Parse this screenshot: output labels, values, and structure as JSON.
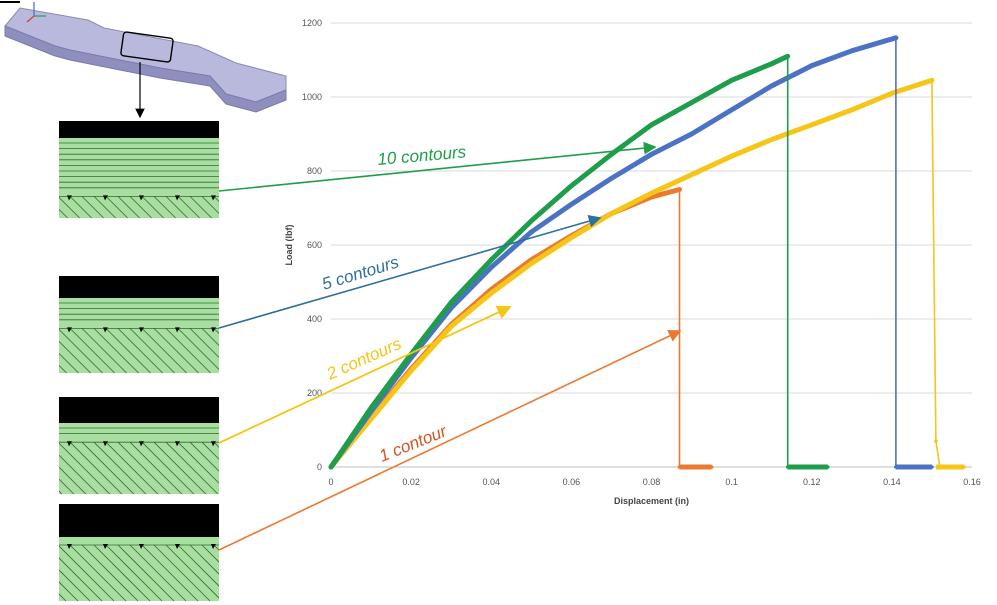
{
  "figure": {
    "inset_count": 4,
    "specimen_color": "#a9a9cf",
    "raster_color": "#a8dfa0",
    "contour_band_color": "#000000"
  },
  "chart_data": {
    "type": "line",
    "title": "",
    "xlabel": "Displacement (in)",
    "ylabel": "Load (lbf)",
    "xlim": [
      0,
      0.16
    ],
    "ylim": [
      0,
      1200
    ],
    "xticks": [
      "0",
      "0.02",
      "0.04",
      "0.06",
      "0.08",
      "0.1",
      "0.12",
      "0.14",
      "0.16"
    ],
    "yticks": [
      "0",
      "200",
      "400",
      "600",
      "800",
      "1000",
      "1200"
    ],
    "grid": "horizontal",
    "legend": "none",
    "series": [
      {
        "name": "1 contour",
        "color": "#e97a2f",
        "x": [
          0.0,
          0.01,
          0.02,
          0.03,
          0.04,
          0.05,
          0.06,
          0.07,
          0.08,
          0.087,
          0.087,
          0.095
        ],
        "y": [
          0,
          135,
          265,
          385,
          480,
          560,
          625,
          685,
          730,
          750,
          0,
          0
        ]
      },
      {
        "name": "2 contours",
        "color": "#f5c518",
        "x": [
          0.0,
          0.01,
          0.02,
          0.03,
          0.04,
          0.05,
          0.06,
          0.07,
          0.08,
          0.09,
          0.1,
          0.11,
          0.12,
          0.13,
          0.14,
          0.15,
          0.151,
          0.152,
          0.158
        ],
        "y": [
          0,
          130,
          260,
          380,
          470,
          550,
          620,
          685,
          740,
          790,
          840,
          885,
          925,
          965,
          1010,
          1045,
          70,
          0,
          0
        ]
      },
      {
        "name": "5 contours",
        "color": "#4c72c4",
        "x": [
          0.0,
          0.01,
          0.02,
          0.03,
          0.04,
          0.05,
          0.06,
          0.07,
          0.08,
          0.09,
          0.1,
          0.11,
          0.12,
          0.13,
          0.141,
          0.141,
          0.15
        ],
        "y": [
          0,
          150,
          295,
          430,
          540,
          635,
          710,
          780,
          845,
          900,
          965,
          1030,
          1085,
          1125,
          1160,
          0,
          0
        ]
      },
      {
        "name": "10 contours",
        "color": "#1e9e4a",
        "x": [
          0.0,
          0.01,
          0.02,
          0.03,
          0.04,
          0.05,
          0.06,
          0.07,
          0.08,
          0.09,
          0.1,
          0.11,
          0.114,
          0.114,
          0.124
        ],
        "y": [
          0,
          160,
          305,
          445,
          560,
          665,
          760,
          845,
          925,
          985,
          1045,
          1090,
          1110,
          0,
          0
        ]
      }
    ],
    "annotations": [
      {
        "text": "10 contours",
        "color": "#1e9e4a"
      },
      {
        "text": "5 contours",
        "color": "#2e6fa0"
      },
      {
        "text": "2 contours",
        "color": "#f5c518"
      },
      {
        "text": "1 contour",
        "color": "#d9531e"
      }
    ]
  }
}
